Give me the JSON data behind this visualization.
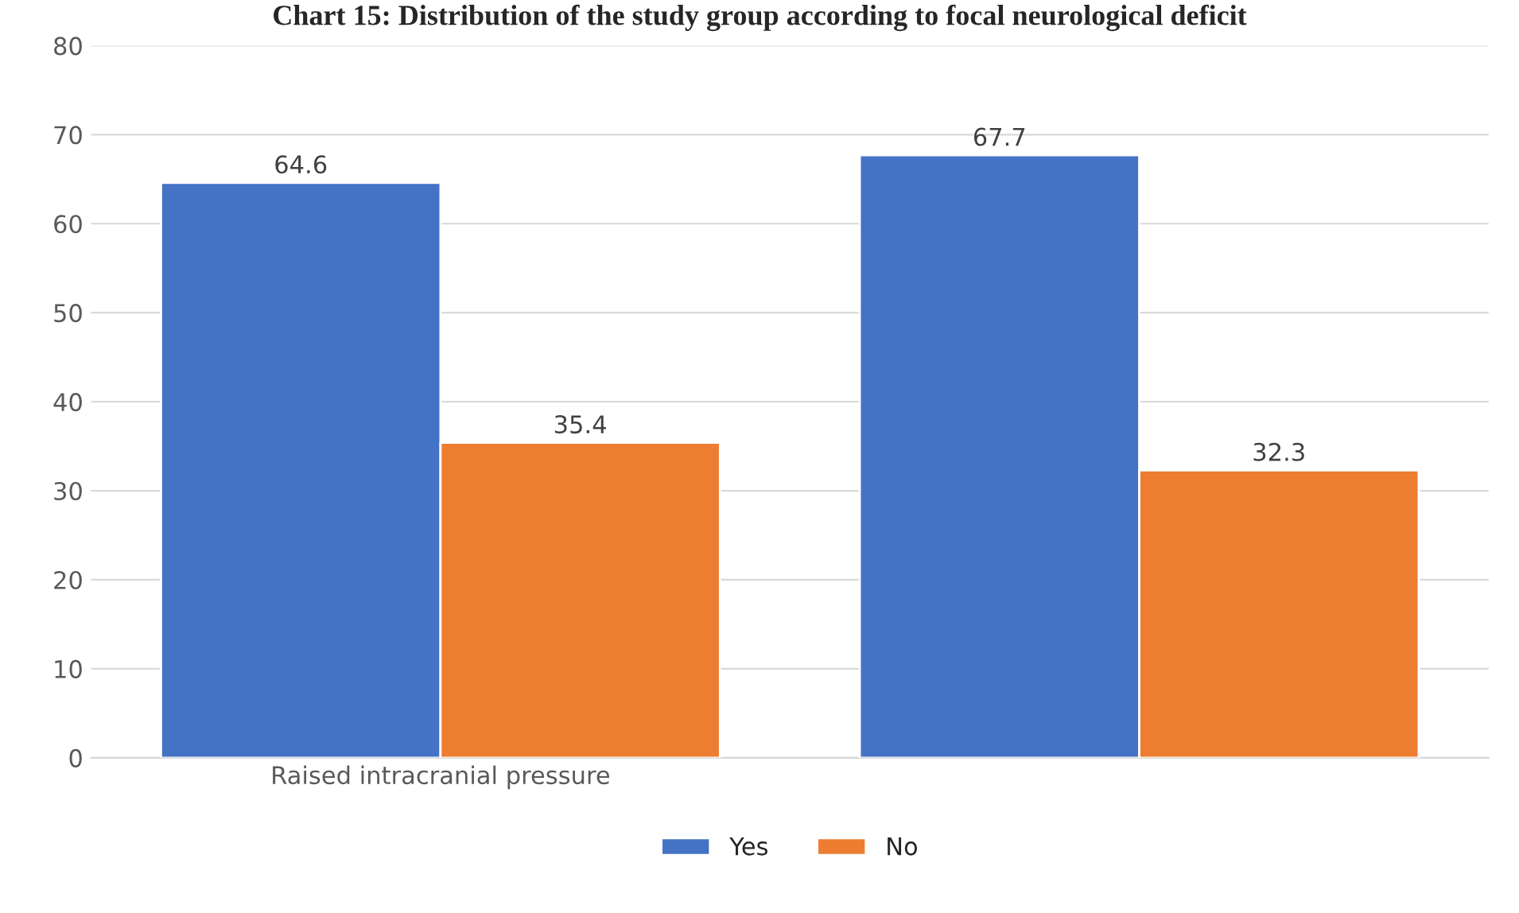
{
  "chart_data": {
    "type": "bar",
    "title": "Chart 15: Distribution of the study group according to focal neurological deficit",
    "categories": [
      "Raised intracranial pressure",
      null
    ],
    "series": [
      {
        "name": "Yes",
        "color": "#4472c4",
        "values": [
          64.6,
          67.7
        ]
      },
      {
        "name": "No",
        "color": "#ed7d31",
        "values": [
          35.4,
          32.3
        ]
      }
    ],
    "ylim": [
      0,
      80
    ],
    "yticks": [
      0,
      10,
      20,
      30,
      40,
      50,
      60,
      70,
      80
    ],
    "grid": "y",
    "legend": "bottom",
    "data_labels": true
  }
}
